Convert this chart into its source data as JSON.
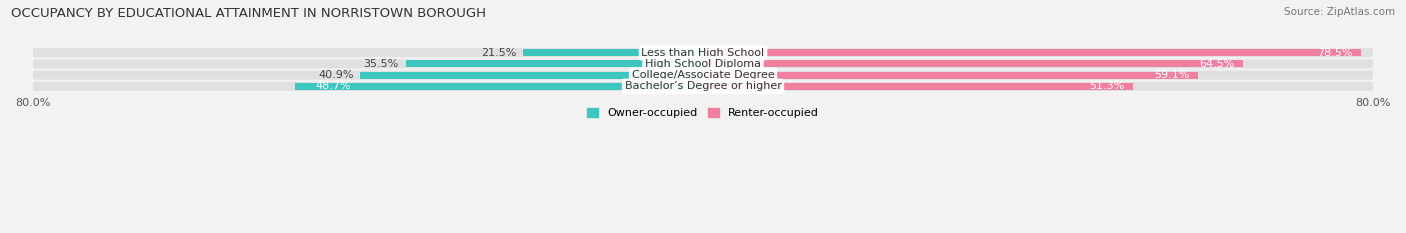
{
  "title": "OCCUPANCY BY EDUCATIONAL ATTAINMENT IN NORRISTOWN BOROUGH",
  "source": "Source: ZipAtlas.com",
  "categories": [
    "Less than High School",
    "High School Diploma",
    "College/Associate Degree",
    "Bachelor’s Degree or higher"
  ],
  "owner_pct": [
    21.5,
    35.5,
    40.9,
    48.7
  ],
  "renter_pct": [
    78.5,
    64.5,
    59.1,
    51.3
  ],
  "owner_color": "#3DC5BF",
  "renter_color": "#F080A0",
  "owner_label": "Owner-occupied",
  "renter_label": "Renter-occupied",
  "xlim_left": 80.0,
  "xlim_right": 80.0,
  "title_fontsize": 9.5,
  "source_fontsize": 7.5,
  "label_fontsize": 8.0,
  "tick_fontsize": 8.0,
  "bar_height": 0.62,
  "bg_color": "#F2F2F2",
  "bar_bg_color": "#E0E0E0"
}
